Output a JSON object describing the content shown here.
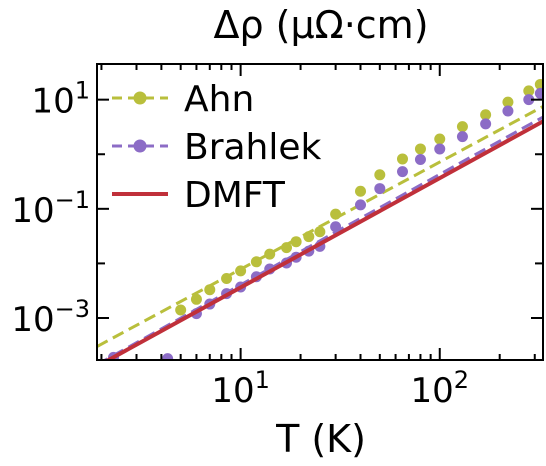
{
  "chart_data": {
    "type": "scatter",
    "title": "Δρ (μΩ·cm)",
    "xlabel": "T (K)",
    "ylabel": "",
    "xscale": "log",
    "yscale": "log",
    "xlim": [
      1.9,
      330
    ],
    "ylim": [
      0.00017,
      45
    ],
    "x_ticks": [
      {
        "value": 10,
        "base": "10",
        "exp": "1"
      },
      {
        "value": 100,
        "base": "10",
        "exp": "2"
      }
    ],
    "y_ticks": [
      {
        "value": 10,
        "base": "10",
        "exp": "1"
      },
      {
        "value": 0.1,
        "base": "10",
        "exp": "−1"
      },
      {
        "value": 0.001,
        "base": "10",
        "exp": "−3"
      }
    ],
    "grid": false,
    "legend_position": "top-left",
    "series": [
      {
        "name": "Ahn",
        "style": "dots+dashed",
        "color": "#b9bf3c",
        "points": [
          [
            5,
            0.0014
          ],
          [
            6,
            0.0022
          ],
          [
            7,
            0.0033
          ],
          [
            8.5,
            0.0053
          ],
          [
            10,
            0.0073
          ],
          [
            12,
            0.0107
          ],
          [
            14,
            0.0148
          ],
          [
            17,
            0.0195
          ],
          [
            19,
            0.025
          ],
          [
            22,
            0.031
          ],
          [
            25,
            0.038
          ],
          [
            30,
            0.08
          ],
          [
            40,
            0.21
          ],
          [
            50,
            0.42
          ],
          [
            65,
            0.82
          ],
          [
            80,
            1.25
          ],
          [
            100,
            1.9
          ],
          [
            130,
            3.2
          ],
          [
            170,
            5.3
          ],
          [
            220,
            9.0
          ],
          [
            280,
            14.5
          ],
          [
            320,
            19.0
          ]
        ],
        "fit": [
          [
            1.9,
            0.0003
          ],
          [
            330,
            7.5
          ]
        ]
      },
      {
        "name": "Brahlek",
        "style": "dots+dashed",
        "color": "#8c6cc6",
        "points": [
          [
            2.3,
            0.00019
          ],
          [
            4.3,
            0.00018
          ],
          [
            6,
            0.0012
          ],
          [
            7,
            0.0018
          ],
          [
            8.5,
            0.0028
          ],
          [
            10,
            0.0037
          ],
          [
            12,
            0.0057
          ],
          [
            14,
            0.0079
          ],
          [
            17,
            0.0102
          ],
          [
            19,
            0.013
          ],
          [
            22,
            0.0168
          ],
          [
            25,
            0.0205
          ],
          [
            30,
            0.047
          ],
          [
            40,
            0.118
          ],
          [
            50,
            0.235
          ],
          [
            65,
            0.48
          ],
          [
            80,
            0.8
          ],
          [
            100,
            1.25
          ],
          [
            130,
            2.1
          ],
          [
            170,
            3.6
          ],
          [
            220,
            6.2
          ],
          [
            280,
            10.0
          ],
          [
            320,
            13.0
          ]
        ],
        "fit": [
          [
            1.9,
            0.00014
          ],
          [
            330,
            4.8
          ]
        ]
      },
      {
        "name": "DMFT",
        "style": "solid",
        "color": "#c0303a",
        "points": [
          [
            1.9,
            0.00013
          ],
          [
            330,
            4.0
          ]
        ]
      }
    ]
  }
}
